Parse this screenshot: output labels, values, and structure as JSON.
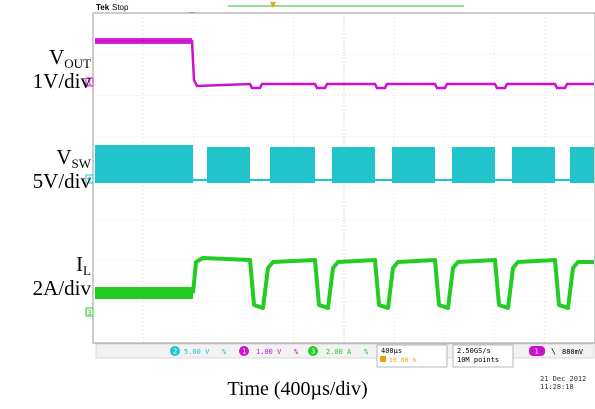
{
  "header": {
    "brand": "Tek",
    "state": "Stop"
  },
  "channels": [
    {
      "id": "vout",
      "name_main": "V",
      "name_sub": "OUT",
      "scale": "1V/div",
      "color": "#cc11cc",
      "marker": "1"
    },
    {
      "id": "vsw",
      "name_main": "V",
      "name_sub": "SW",
      "scale": "5V/div",
      "color": "#22c4cc",
      "marker": "2"
    },
    {
      "id": "il",
      "name_main": "I",
      "name_sub": "L",
      "scale": "2A/div",
      "color": "#22cc22",
      "marker": "3"
    }
  ],
  "status_bar": {
    "ch2": {
      "num": "2",
      "value": "5.00 V",
      "suffix": "%"
    },
    "ch1": {
      "num": "1",
      "value": "1.00 V",
      "suffix": "%"
    },
    "ch3": {
      "num": "3",
      "value": "2.00 A",
      "suffix": "%"
    },
    "timebase": "400µs",
    "trigger_pos": "10.00 %",
    "sample_rate": "2.50GS/s",
    "record_length": "10M points",
    "trigger_ch": "1",
    "trigger_slope": "\\",
    "trigger_level": "880mV"
  },
  "date": "21 Dec 2012",
  "time": "11:28:18",
  "chart_data": {
    "type": "line",
    "xlabel": "Time (400µs/div)",
    "x_divisions": 10,
    "y_divisions": 8,
    "grid": true,
    "trigger_position_pct": 10,
    "series": [
      {
        "name": "VOUT",
        "description": "output voltage steps down at trigger then shows periodic small dips"
      },
      {
        "name": "VSW",
        "description": "switching node: dense switching band with periodic gaps"
      },
      {
        "name": "IL",
        "description": "inductor current: rises at trigger, periodic drops to zero"
      }
    ]
  }
}
